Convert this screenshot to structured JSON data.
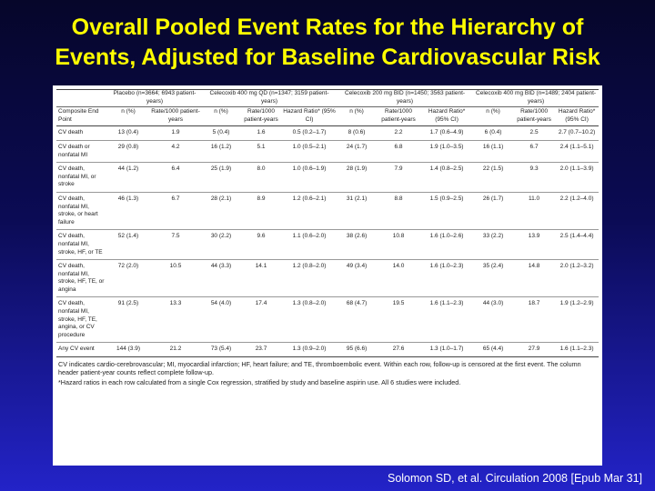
{
  "title": {
    "line1": "Overall Pooled Event Rates for the Hierarchy of",
    "line2": "Events, Adjusted for Baseline Cardiovascular Risk"
  },
  "table": {
    "groups": [
      "",
      "Placebo (n=3664; 6943 patient-years)",
      "Celecoxib 400 mg QD (n=1347; 3159 patient-years)",
      "Celecoxib 200 mg BID (n=1450; 3563 patient-years)",
      "Celecoxib 400 mg BID (n=1489; 2404 patient-years)"
    ],
    "subheaders": {
      "endpoint": "Composite End Point",
      "n": "n (%)",
      "rate": "Rate/1000 patient-years",
      "hr": "Hazard Ratio* (95% CI)"
    },
    "rows": [
      {
        "ep": "CV death",
        "c": [
          "13 (0.4)",
          "1.9",
          "5 (0.4)",
          "1.6",
          "0.5 (0.2–1.7)",
          "8 (0.6)",
          "2.2",
          "1.7 (0.6–4.9)",
          "6 (0.4)",
          "2.5",
          "2.7 (0.7–10.2)"
        ]
      },
      {
        "ep": "CV death or nonfatal MI",
        "c": [
          "29 (0.8)",
          "4.2",
          "16 (1.2)",
          "5.1",
          "1.0 (0.5–2.1)",
          "24 (1.7)",
          "6.8",
          "1.9 (1.0–3.5)",
          "16 (1.1)",
          "6.7",
          "2.4 (1.1–5.1)"
        ]
      },
      {
        "ep": "CV death, nonfatal MI, or stroke",
        "c": [
          "44 (1.2)",
          "6.4",
          "25 (1.9)",
          "8.0",
          "1.0 (0.6–1.9)",
          "28 (1.9)",
          "7.9",
          "1.4 (0.8–2.5)",
          "22 (1.5)",
          "9.3",
          "2.0 (1.1–3.9)"
        ]
      },
      {
        "ep": "CV death, nonfatal MI, stroke, or heart failure",
        "c": [
          "46 (1.3)",
          "6.7",
          "28 (2.1)",
          "8.9",
          "1.2 (0.6–2.1)",
          "31 (2.1)",
          "8.8",
          "1.5 (0.9–2.5)",
          "26 (1.7)",
          "11.0",
          "2.2 (1.2–4.0)"
        ]
      },
      {
        "ep": "CV death, nonfatal MI, stroke, HF, or TE",
        "c": [
          "52 (1.4)",
          "7.5",
          "30 (2.2)",
          "9.6",
          "1.1 (0.6–2.0)",
          "38 (2.6)",
          "10.8",
          "1.6 (1.0–2.6)",
          "33 (2.2)",
          "13.9",
          "2.5 (1.4–4.4)"
        ]
      },
      {
        "ep": "CV death, nonfatal MI, stroke, HF, TE, or angina",
        "c": [
          "72 (2.0)",
          "10.5",
          "44 (3.3)",
          "14.1",
          "1.2 (0.8–2.0)",
          "49 (3.4)",
          "14.0",
          "1.6 (1.0–2.3)",
          "35 (2.4)",
          "14.8",
          "2.0 (1.2–3.2)"
        ]
      },
      {
        "ep": "CV death, nonfatal MI, stroke, HF, TE, angina, or CV procedure",
        "c": [
          "91 (2.5)",
          "13.3",
          "54 (4.0)",
          "17.4",
          "1.3 (0.8–2.0)",
          "68 (4.7)",
          "19.5",
          "1.6 (1.1–2.3)",
          "44 (3.0)",
          "18.7",
          "1.9 (1.2–2.9)"
        ]
      },
      {
        "ep": "Any CV event",
        "c": [
          "144 (3.9)",
          "21.2",
          "73 (5.4)",
          "23.7",
          "1.3 (0.9–2.0)",
          "95 (6.6)",
          "27.6",
          "1.3 (1.0–1.7)",
          "65 (4.4)",
          "27.9",
          "1.6 (1.1–2.3)"
        ]
      }
    ],
    "footnote1": "CV indicates cardio-cerebrovascular; MI, myocardial infarction; HF, heart failure; and TE, thromboembolic event. Within each row, follow-up is censored at the first event. The column header patient-year counts reflect complete follow-up.",
    "footnote2": "*Hazard ratios in each row calculated from a single Cox regression, stratified by study and baseline aspirin use. All 6 studies were included."
  },
  "citation": "Solomon SD, et al. Circulation 2008 [Epub Mar 31]"
}
